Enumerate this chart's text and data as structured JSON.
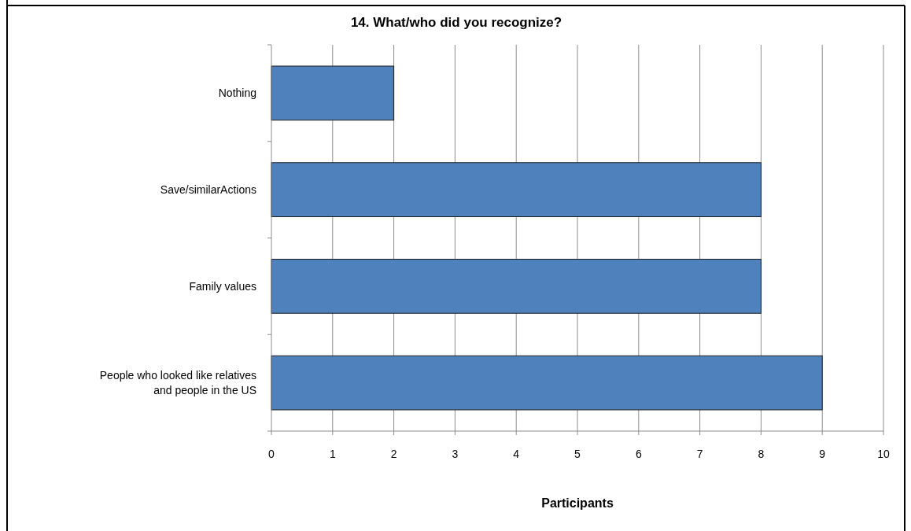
{
  "chart_data": {
    "type": "bar",
    "orientation": "horizontal",
    "title": "14.  What/who did you recognize?",
    "xlabel": "Participants",
    "categories": [
      "Nothing",
      "Save/similarActions",
      "Family values",
      "People who looked like relatives and people in the US"
    ],
    "values": [
      2,
      8,
      8,
      9
    ],
    "color": "#4f81bd",
    "xlim": [
      0,
      10
    ],
    "xticks": [
      0,
      1,
      2,
      3,
      4,
      5,
      6,
      7,
      8,
      9,
      10
    ],
    "grid": "x"
  }
}
